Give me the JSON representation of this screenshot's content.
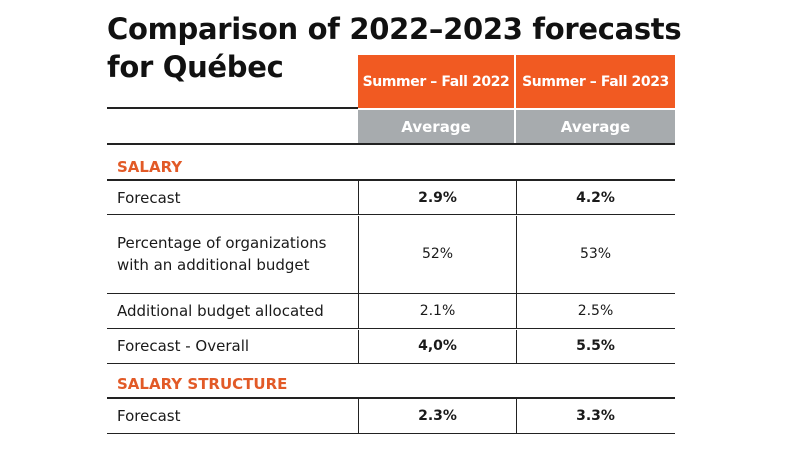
{
  "title_line1": "Comparison of 2022–2023 forecasts",
  "title_line2": "for Québec",
  "columns": [
    "Summer – Fall 2022",
    "Summer – Fall 2023"
  ],
  "subheaders": [
    "Average",
    "Average"
  ],
  "colors": {
    "accent": "#f15a22",
    "subheader": "#a7abae",
    "section": "#e25a27"
  },
  "sections": [
    {
      "name": "SALARY",
      "rows": [
        {
          "label": "Forecast",
          "values": [
            "2.9%",
            "4.2%"
          ]
        },
        {
          "label": "Percentage of organizations with an additional budget",
          "values": [
            "52%",
            "53%"
          ]
        },
        {
          "label": "Additional budget allocated",
          "values": [
            "2.1%",
            "2.5%"
          ]
        },
        {
          "label": "Forecast - Overall",
          "values": [
            "4,0%",
            "5.5%"
          ]
        }
      ]
    },
    {
      "name": "SALARY STRUCTURE",
      "rows": [
        {
          "label": "Forecast",
          "values": [
            "2.3%",
            "3.3%"
          ]
        }
      ]
    }
  ]
}
